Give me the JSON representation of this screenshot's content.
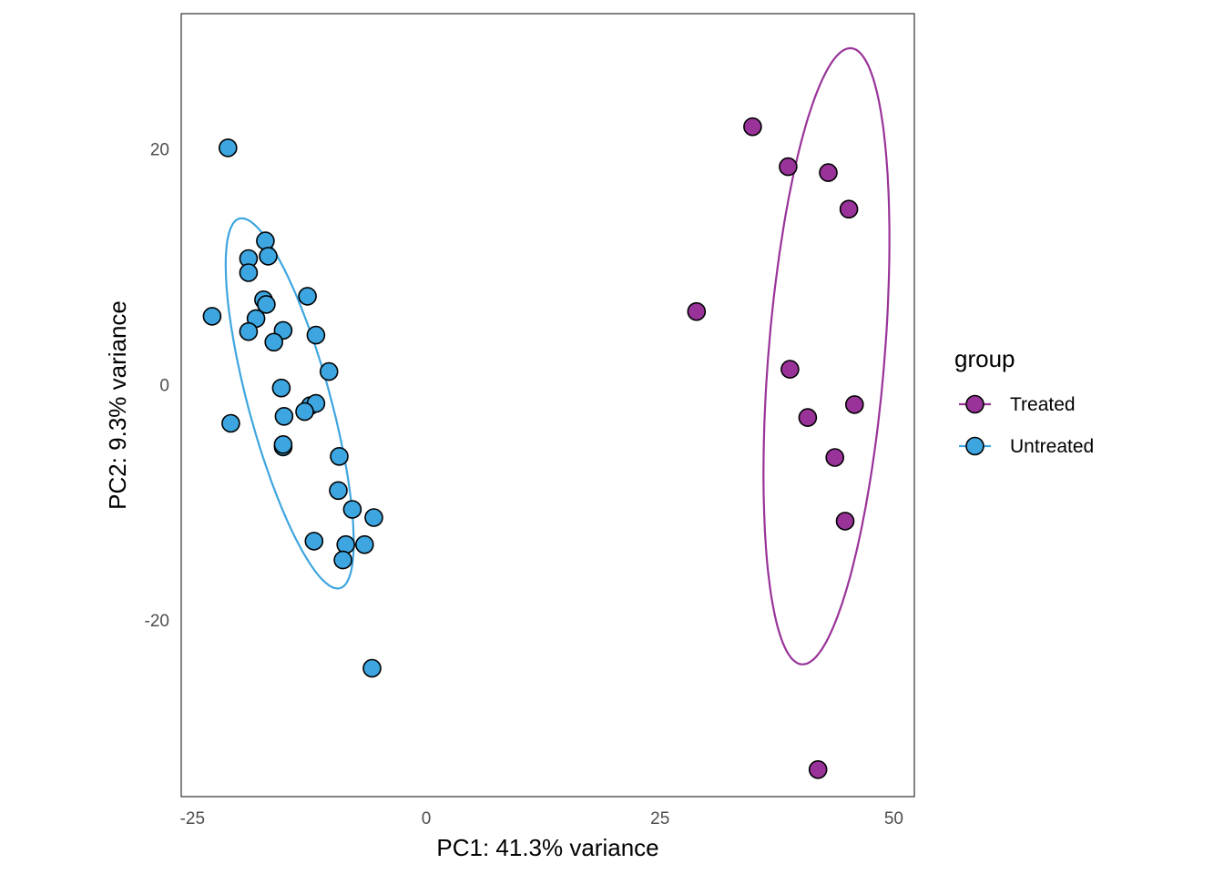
{
  "chart_data": {
    "type": "scatter",
    "title": "",
    "xlabel": "PC1: 41.3% variance",
    "ylabel": "PC2: 9.3% variance",
    "xlim": [
      -26.2,
      52.2
    ],
    "ylim": [
      -35.0,
      31.5
    ],
    "x_ticks": [
      -25,
      0,
      25,
      50
    ],
    "y_ticks": [
      -20,
      0,
      20
    ],
    "x_tick_labels": [
      "-25",
      "0",
      "25",
      "50"
    ],
    "y_tick_labels": [
      "-20",
      "0",
      "20"
    ],
    "grid": false,
    "legend": {
      "title": "group",
      "position": "right",
      "entries": [
        "Treated",
        "Untreated"
      ]
    },
    "series": [
      {
        "name": "Treated",
        "color": "#993399",
        "ellipse": {
          "cx": 42.8,
          "cy": 2.4,
          "rx": 26.3,
          "ry": 6.2,
          "angle_deg": 84.1
        },
        "points": [
          {
            "x": 34.9,
            "y": 21.9
          },
          {
            "x": 38.7,
            "y": 18.5
          },
          {
            "x": 43.0,
            "y": 18.0
          },
          {
            "x": 45.2,
            "y": 14.9
          },
          {
            "x": 28.9,
            "y": 6.2
          },
          {
            "x": 38.9,
            "y": 1.3
          },
          {
            "x": 45.8,
            "y": -1.7
          },
          {
            "x": 40.8,
            "y": -2.8
          },
          {
            "x": 43.7,
            "y": -6.2
          },
          {
            "x": 44.8,
            "y": -11.6
          },
          {
            "x": 41.9,
            "y": -32.7
          }
        ]
      },
      {
        "name": "Untreated",
        "color": "#3DA5DF",
        "ellipse": {
          "cx": -14.6,
          "cy": -1.6,
          "rx": 16.6,
          "ry": 4.3,
          "angle_deg": -70.6
        },
        "points": [
          {
            "x": -21.2,
            "y": 20.1
          },
          {
            "x": -17.2,
            "y": 12.2
          },
          {
            "x": -16.9,
            "y": 10.9
          },
          {
            "x": -19.0,
            "y": 10.7
          },
          {
            "x": -19.0,
            "y": 9.5
          },
          {
            "x": -17.4,
            "y": 7.2
          },
          {
            "x": -17.1,
            "y": 6.8
          },
          {
            "x": -22.9,
            "y": 5.8
          },
          {
            "x": -18.2,
            "y": 5.6
          },
          {
            "x": -19.0,
            "y": 4.5
          },
          {
            "x": -15.3,
            "y": 4.6
          },
          {
            "x": -16.3,
            "y": 3.6
          },
          {
            "x": -12.7,
            "y": 7.5
          },
          {
            "x": -11.8,
            "y": 4.2
          },
          {
            "x": -10.4,
            "y": 1.1
          },
          {
            "x": -15.5,
            "y": -0.3
          },
          {
            "x": -12.4,
            "y": -1.8
          },
          {
            "x": -11.8,
            "y": -1.6
          },
          {
            "x": -13.0,
            "y": -2.3
          },
          {
            "x": -15.2,
            "y": -2.7
          },
          {
            "x": -20.9,
            "y": -3.3
          },
          {
            "x": -15.3,
            "y": -5.3
          },
          {
            "x": -15.3,
            "y": -5.1
          },
          {
            "x": -9.3,
            "y": -6.1
          },
          {
            "x": -9.4,
            "y": -9.0
          },
          {
            "x": -7.9,
            "y": -10.6
          },
          {
            "x": -5.6,
            "y": -11.3
          },
          {
            "x": -12.0,
            "y": -13.3
          },
          {
            "x": -8.6,
            "y": -13.6
          },
          {
            "x": -6.6,
            "y": -13.6
          },
          {
            "x": -8.9,
            "y": -14.9
          },
          {
            "x": -5.8,
            "y": -24.1
          }
        ]
      }
    ]
  }
}
